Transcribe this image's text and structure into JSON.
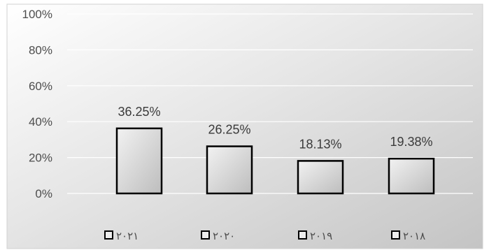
{
  "chart_data": {
    "type": "bar",
    "title": "",
    "xlabel": "",
    "ylabel": "",
    "categories": [
      "٢٠٢١",
      "٢٠٢٠",
      "٢٠١٩",
      "٢٠١٨"
    ],
    "values": [
      0.3625,
      0.2625,
      0.1813,
      0.1938
    ],
    "value_labels": [
      "36.25%",
      "26.25%",
      "18.13%",
      "19.38%"
    ],
    "ylim": [
      0,
      1
    ],
    "y_ticks": [
      0,
      0.2,
      0.4,
      0.6,
      0.8,
      1.0
    ],
    "y_tick_labels": [
      "0%",
      "20%",
      "40%",
      "60%",
      "80%",
      "100%"
    ],
    "grid": true,
    "legend": {
      "placement": "bottom",
      "entries": [
        "٢٠٢١",
        "٢٠٢٠",
        "٢٠١٩",
        "٢٠١٨"
      ]
    },
    "colors": {
      "bar_fill_light": "#f2f2f2",
      "bar_fill_dark": "#bdbdbd",
      "bar_stroke": "#000000",
      "gridline": "#ffffff",
      "background_light": "#ffffff",
      "background_dark": "#c4c4c4"
    }
  }
}
